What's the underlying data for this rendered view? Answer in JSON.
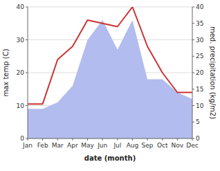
{
  "chart_data": {
    "type": "line",
    "xlabel": "date (month)",
    "ylabel": "max temp (C)",
    "y2label": "med. precipitation (kg/m2)",
    "categories": [
      "Jan",
      "Feb",
      "Mar",
      "Apr",
      "May",
      "Jun",
      "Jul",
      "Aug",
      "Sep",
      "Oct",
      "Nov",
      "Dec"
    ],
    "series": [
      {
        "type": "area",
        "axis": "y2",
        "color": "#b3bcee",
        "values": [
          9,
          9,
          11,
          16,
          30,
          36,
          27,
          36,
          18,
          18,
          14,
          12
        ]
      },
      {
        "type": "line",
        "color": "#cc3333",
        "values": [
          10.5,
          10.5,
          24,
          28,
          36,
          35,
          34,
          40,
          28,
          20,
          14,
          14
        ]
      }
    ],
    "ylim": [
      0,
      40
    ],
    "yticks": [
      0,
      10,
      20,
      30,
      40
    ],
    "y2lim": [
      0,
      40
    ],
    "y2ticks": [
      0,
      5,
      10,
      15,
      20,
      25,
      30,
      35,
      40
    ],
    "grid": true
  }
}
